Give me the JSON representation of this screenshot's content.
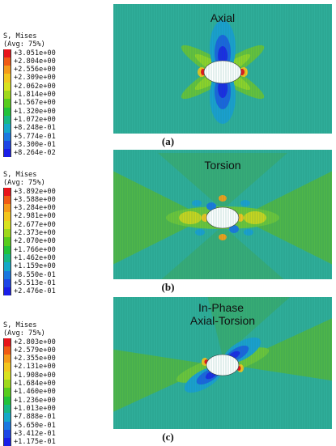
{
  "panels": [
    {
      "legend_title": "S, Mises",
      "legend_avg": "(Avg: 75%)",
      "legend_values": [
        "+3.051e+00",
        "+2.804e+00",
        "+2.556e+00",
        "+2.309e+00",
        "+2.062e+00",
        "+1.814e+00",
        "+1.567e+00",
        "+1.320e+00",
        "+1.072e+00",
        "+8.248e-01",
        "+5.774e-01",
        "+3.300e-01",
        "+8.264e-02"
      ],
      "sim_label": "Axial",
      "caption": "(a)"
    },
    {
      "legend_title": "S, Mises",
      "legend_avg": "(Avg: 75%)",
      "legend_values": [
        "+3.892e+00",
        "+3.588e+00",
        "+3.284e+00",
        "+2.981e+00",
        "+2.677e+00",
        "+2.373e+00",
        "+2.070e+00",
        "+1.766e+00",
        "+1.462e+00",
        "+1.159e+00",
        "+8.550e-01",
        "+5.513e-01",
        "+2.476e-01"
      ],
      "sim_label": "Torsion",
      "caption": "(b)"
    },
    {
      "legend_title": "S, Mises",
      "legend_avg": "(Avg: 75%)",
      "legend_values": [
        "+2.803e+00",
        "+2.579e+00",
        "+2.355e+00",
        "+2.131e+00",
        "+1.908e+00",
        "+1.684e+00",
        "+1.460e+00",
        "+1.236e+00",
        "+1.013e+00",
        "+7.888e-01",
        "+5.650e-01",
        "+3.412e-01",
        "+1.175e-01"
      ],
      "sim_label": "In-Phase Axial-Torsion",
      "caption": "(c)"
    }
  ],
  "colors": {
    "legend_scale": [
      "#e8141a",
      "#f05a14",
      "#f59a1a",
      "#f2c61e",
      "#d8e21e",
      "#9fd81c",
      "#58cc1e",
      "#22c23a",
      "#16b884",
      "#14a8c8",
      "#1a78e0",
      "#1e46e6",
      "#1a1ee8"
    ],
    "background_field": "#2fae9a"
  }
}
